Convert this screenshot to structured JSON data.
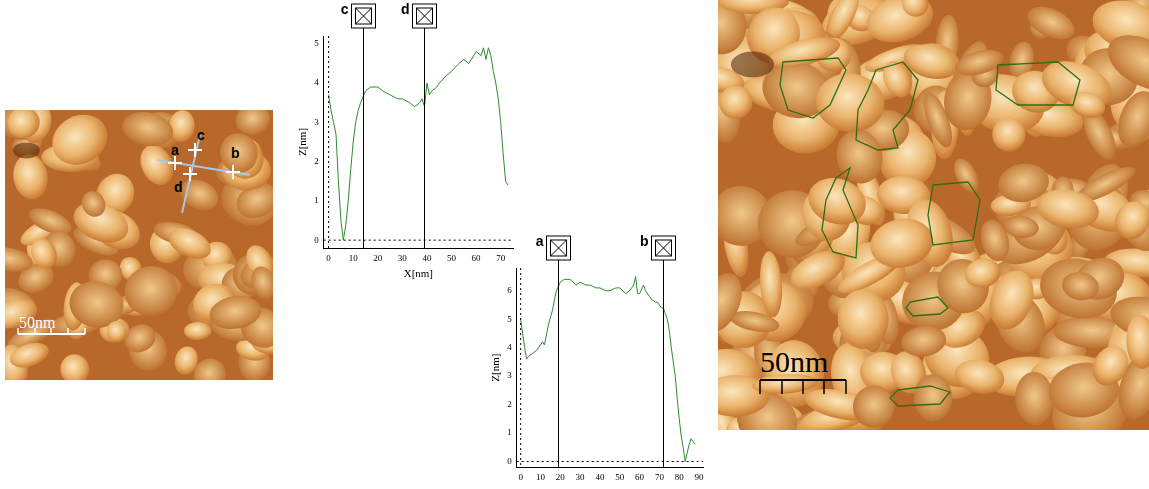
{
  "figure": {
    "left_image": {
      "scale_bar": "50nm",
      "markers": [
        "a",
        "b",
        "c",
        "d"
      ]
    },
    "right_image": {
      "scale_bar": "50nm"
    }
  },
  "chart_data": [
    {
      "type": "line",
      "x_label": "X[nm]",
      "y_label": "Z[nm]",
      "color": "#2e8b2e",
      "grid": false,
      "x": [
        0,
        1,
        2,
        3,
        4,
        5,
        6,
        7,
        8,
        9,
        10,
        11,
        12,
        13,
        15,
        17,
        20,
        22,
        25,
        28,
        30,
        33,
        35,
        37,
        38,
        39,
        40,
        41,
        42,
        44,
        45,
        48,
        50,
        53,
        55,
        57,
        60,
        62,
        63,
        64,
        65,
        66,
        67,
        68,
        69,
        70,
        71,
        72,
        73
      ],
      "values": [
        3.7,
        3.3,
        3.0,
        2.7,
        1.5,
        0.5,
        0.0,
        0.4,
        1.0,
        1.8,
        2.5,
        3.0,
        3.3,
        3.5,
        3.8,
        3.9,
        3.9,
        3.8,
        3.7,
        3.6,
        3.6,
        3.5,
        3.4,
        3.5,
        3.6,
        3.4,
        4.0,
        3.7,
        3.8,
        3.9,
        4.0,
        4.2,
        4.3,
        4.5,
        4.6,
        4.5,
        4.8,
        4.7,
        4.9,
        4.6,
        4.9,
        4.7,
        4.3,
        4.0,
        3.6,
        3.0,
        2.2,
        1.5,
        1.4
      ],
      "xlim": [
        -2,
        75
      ],
      "xticks": [
        0,
        10,
        20,
        30,
        40,
        50,
        60,
        70
      ],
      "ylim": [
        -0.2,
        5.2
      ],
      "yticks": [
        0,
        1,
        2,
        3,
        4,
        5
      ],
      "cursors": [
        {
          "label": "c",
          "x": 14
        },
        {
          "label": "d",
          "x": 39
        }
      ]
    },
    {
      "type": "line",
      "y_label": "Z[nm]",
      "color": "#2e8b2e",
      "grid": false,
      "x": [
        0,
        1,
        2,
        3,
        4,
        6,
        8,
        9,
        11,
        12,
        14,
        16,
        18,
        20,
        22,
        25,
        28,
        30,
        33,
        35,
        38,
        40,
        43,
        45,
        48,
        50,
        53,
        55,
        57,
        58,
        59,
        60,
        62,
        63,
        65,
        66,
        68,
        69,
        71,
        72,
        73,
        74,
        75,
        76,
        77,
        78,
        79,
        80,
        81,
        82,
        83,
        84,
        85,
        86,
        87,
        88
      ],
      "values": [
        5.0,
        4.5,
        4.0,
        3.6,
        3.7,
        3.8,
        3.9,
        4.0,
        4.2,
        4.1,
        4.8,
        5.3,
        6.0,
        6.3,
        6.4,
        6.4,
        6.2,
        6.3,
        6.2,
        6.2,
        6.1,
        6.1,
        6.0,
        6.0,
        6.1,
        6.1,
        5.9,
        6.0,
        6.2,
        6.5,
        5.9,
        5.9,
        6.2,
        6.0,
        5.8,
        5.7,
        5.6,
        5.6,
        5.4,
        5.4,
        5.2,
        5.0,
        4.6,
        4.0,
        3.5,
        3.0,
        2.2,
        1.5,
        0.9,
        0.5,
        0.0,
        0.3,
        0.6,
        0.8,
        0.7,
        0.6
      ],
      "xlim": [
        -2,
        92
      ],
      "xticks": [
        0,
        10,
        20,
        30,
        40,
        50,
        60,
        70,
        80,
        90
      ],
      "ylim": [
        -0.2,
        6.8
      ],
      "yticks": [
        0,
        1,
        2,
        3,
        4,
        5,
        6
      ],
      "cursors": [
        {
          "label": "a",
          "x": 19
        },
        {
          "label": "b",
          "x": 72
        }
      ]
    }
  ]
}
